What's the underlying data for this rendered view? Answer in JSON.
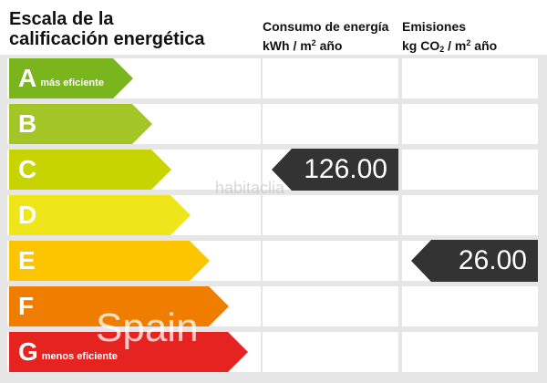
{
  "title": {
    "line1": "Escala de la",
    "line2": "calificación energética"
  },
  "columns": {
    "consumo": {
      "line1": "Consumo de energía",
      "line2_pre": "kWh / m",
      "line2_sup": "2",
      "line2_post": " año"
    },
    "emisiones": {
      "line1": "Emisiones",
      "line2_pre": "kg CO",
      "line2_sub": "2",
      "line2_mid": " / m",
      "line2_sup": "2",
      "line2_post": " año"
    }
  },
  "rating_scale": [
    {
      "letter": "A",
      "sub": "más eficiente",
      "color": "#7ab51d"
    },
    {
      "letter": "B",
      "sub": "",
      "color": "#a3c626"
    },
    {
      "letter": "C",
      "sub": "",
      "color": "#c8d400"
    },
    {
      "letter": "D",
      "sub": "",
      "color": "#eee51a"
    },
    {
      "letter": "E",
      "sub": "",
      "color": "#fcc500"
    },
    {
      "letter": "F",
      "sub": "",
      "color": "#ef7d00"
    },
    {
      "letter": "G",
      "sub": "menos eficiente",
      "color": "#e52421"
    }
  ],
  "consumo_value": {
    "rating": "C",
    "text": "126.00"
  },
  "emisiones_value": {
    "rating": "E",
    "text": "26.00"
  },
  "watermarks": {
    "top": "habitaclia",
    "bottom": "Spain"
  }
}
